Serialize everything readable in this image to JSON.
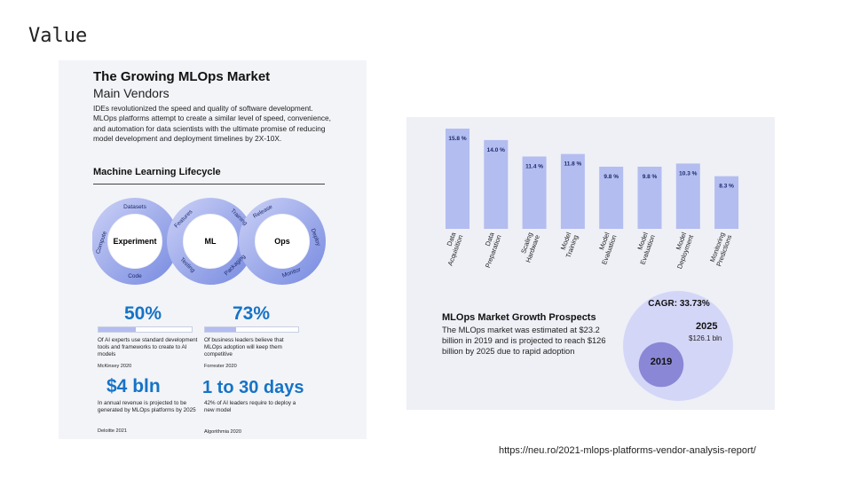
{
  "slide": {
    "title": "Value",
    "source": "https://neu.ro/2021-mlops-platforms-vendor-analysis-report/"
  },
  "infographic": {
    "title": "The Growing MLOps Market",
    "subtitle": "Main Vendors",
    "description": "IDEs revolutionized the speed and quality of software development. MLOps platforms attempt to create a similar level of speed, convenience, and automation for data scientists with the ultimate promise of reducing model development and deployment timelines by 2X-10X.",
    "section_title": "Machine Learning Lifecycle",
    "cycle": {
      "experiment": "Experiment",
      "ml": "ML",
      "ops": "Ops",
      "datasets": "Datasets",
      "compute": "Compute",
      "code": "Code",
      "features": "Features",
      "training": "Training",
      "testing": "Testing",
      "packaging": "Packaging",
      "release": "Release",
      "deploy": "Deploy",
      "monitor": "Monitor"
    },
    "stats": [
      {
        "value": "50%",
        "bar_fraction": 0.4,
        "text": "Of AI experts use standard development tools and frameworks to create to AI models",
        "source": "McKinsey 2020"
      },
      {
        "value": "73%",
        "bar_fraction": 0.33,
        "text": "Of business leaders believe that MLOps adoption will keep them competitive",
        "source": "Forrester 2020"
      },
      {
        "value": "$4 bln",
        "text": "In annual revenue is projected to be generated by MLOps platforms by 2025",
        "source": "Deloitte 2021"
      },
      {
        "value": "1 to 30 days",
        "text": "42% of AI leaders require to deploy a new model",
        "source": "Algorithmia 2020"
      }
    ]
  },
  "chart_data": [
    {
      "type": "bar",
      "categories": [
        "Data Acquisition",
        "Data Preparation",
        "Scaling Hardware",
        "Model Training",
        "Model Evaluation",
        "Model Evaluation",
        "Model Deployment",
        "Monitoring Predictions"
      ],
      "values": [
        15.8,
        14.0,
        11.4,
        11.8,
        9.8,
        9.8,
        10.3,
        8.3
      ],
      "data_labels": [
        "15.8 %",
        "14.0 %",
        "11.4 %",
        "11.8 %",
        "9.8 %",
        "9.8 %",
        "10.3 %",
        "8.3 %"
      ],
      "ylim": [
        0,
        16.5
      ],
      "bar_color": "#b3bdf0",
      "grid": false
    },
    {
      "type": "bubble",
      "title": "MLOps Market Growth Prospects",
      "description": "The MLOps market was estimated at $23.2 billion in 2019 and is projected to reach $126 billion by 2025 due to rapid adoption",
      "cagr_label": "CAGR: 33.73%",
      "bubbles": [
        {
          "year": "2025",
          "label": "$126.1 bln",
          "value": 126.1,
          "color": "#d4d6f7"
        },
        {
          "year": "2019",
          "label": "",
          "value": 23.2,
          "color": "#8a87d6"
        }
      ]
    }
  ],
  "colors": {
    "accent_blue": "#1673c6",
    "cycle_light": "#c9d0f5",
    "cycle_mid": "#8f9fe6",
    "cycle_dark": "#5d74d8"
  }
}
